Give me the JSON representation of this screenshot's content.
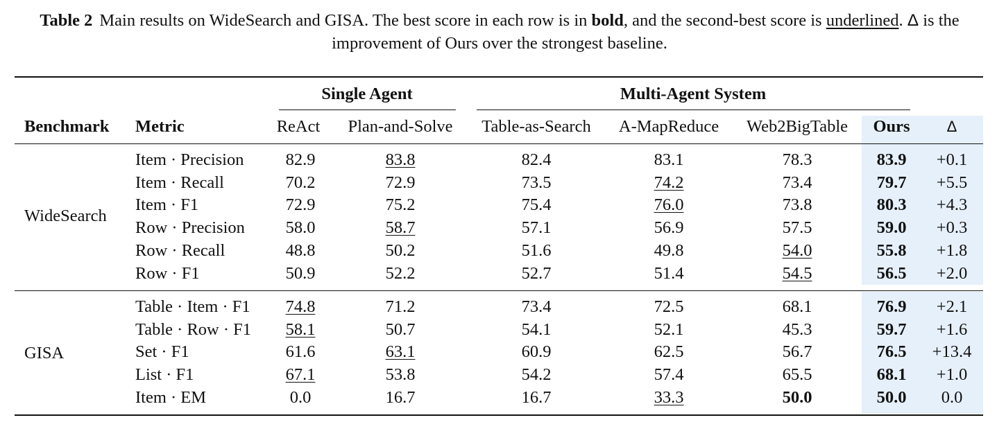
{
  "caption": {
    "label": "Table 2",
    "text_a": "Main results on WideSearch and GISA. The best score in each row is in",
    "bold_word": "bold",
    "text_b": ", and the second-best score is",
    "underlined_word": "underlined",
    "text_c": ".",
    "delta_symbol": "Δ",
    "text_d": "is the improvement of Ours over the strongest baseline."
  },
  "groups": {
    "single_agent": "Single Agent",
    "multi_agent": "Multi-Agent System"
  },
  "headers": {
    "benchmark": "Benchmark",
    "metric": "Metric",
    "columns": [
      "ReAct",
      "Plan-and-Solve",
      "Table-as-Search",
      "A-MapReduce",
      "Web2BigTable",
      "Ours",
      "Δ"
    ]
  },
  "highlight_color": "#e6f0fb",
  "sections": [
    {
      "benchmark": "WideSearch",
      "rows": [
        {
          "metric": "Item · Precision",
          "values": [
            "82.9",
            "83.8",
            "82.4",
            "83.1",
            "78.3",
            "83.9",
            "+0.1"
          ],
          "underline": [
            1
          ],
          "bold": [
            5
          ]
        },
        {
          "metric": "Item · Recall",
          "values": [
            "70.2",
            "72.9",
            "73.5",
            "74.2",
            "73.4",
            "79.7",
            "+5.5"
          ],
          "underline": [
            3
          ],
          "bold": [
            5
          ]
        },
        {
          "metric": "Item · F1",
          "values": [
            "72.9",
            "75.2",
            "75.4",
            "76.0",
            "73.8",
            "80.3",
            "+4.3"
          ],
          "underline": [
            3
          ],
          "bold": [
            5
          ]
        },
        {
          "metric": "Row · Precision",
          "values": [
            "58.0",
            "58.7",
            "57.1",
            "56.9",
            "57.5",
            "59.0",
            "+0.3"
          ],
          "underline": [
            1
          ],
          "bold": [
            5
          ]
        },
        {
          "metric": "Row · Recall",
          "values": [
            "48.8",
            "50.2",
            "51.6",
            "49.8",
            "54.0",
            "55.8",
            "+1.8"
          ],
          "underline": [
            4
          ],
          "bold": [
            5
          ]
        },
        {
          "metric": "Row · F1",
          "values": [
            "50.9",
            "52.2",
            "52.7",
            "51.4",
            "54.5",
            "56.5",
            "+2.0"
          ],
          "underline": [
            4
          ],
          "bold": [
            5
          ]
        }
      ]
    },
    {
      "benchmark": "GISA",
      "rows": [
        {
          "metric": "Table · Item · F1",
          "values": [
            "74.8",
            "71.2",
            "73.4",
            "72.5",
            "68.1",
            "76.9",
            "+2.1"
          ],
          "underline": [
            0
          ],
          "bold": [
            5
          ]
        },
        {
          "metric": "Table · Row · F1",
          "values": [
            "58.1",
            "50.7",
            "54.1",
            "52.1",
            "45.3",
            "59.7",
            "+1.6"
          ],
          "underline": [
            0
          ],
          "bold": [
            5
          ]
        },
        {
          "metric": "Set · F1",
          "values": [
            "61.6",
            "63.1",
            "60.9",
            "62.5",
            "56.7",
            "76.5",
            "+13.4"
          ],
          "underline": [
            1
          ],
          "bold": [
            5
          ]
        },
        {
          "metric": "List · F1",
          "values": [
            "67.1",
            "53.8",
            "54.2",
            "57.4",
            "65.5",
            "68.1",
            "+1.0"
          ],
          "underline": [
            0
          ],
          "bold": [
            5
          ]
        },
        {
          "metric": "Item · EM",
          "values": [
            "0.0",
            "16.7",
            "16.7",
            "33.3",
            "50.0",
            "50.0",
            "0.0"
          ],
          "underline": [
            3
          ],
          "bold": [
            4,
            5
          ]
        }
      ]
    }
  ]
}
